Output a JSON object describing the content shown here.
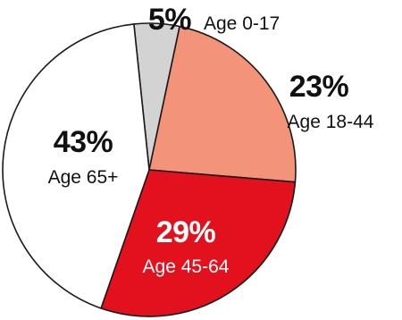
{
  "chart_data": {
    "type": "pie",
    "slices": [
      {
        "label": "Age 0-17",
        "percent_label": "5%",
        "value": 5,
        "color": "#d3d3d3",
        "text_color": "#111111"
      },
      {
        "label": "Age 18-44",
        "percent_label": "23%",
        "value": 23,
        "color": "#f2937a",
        "text_color": "#111111"
      },
      {
        "label": "Age 45-64",
        "percent_label": "29%",
        "value": 29,
        "color": "#e3101e",
        "text_color": "#ffffff"
      },
      {
        "label": "Age 65+",
        "percent_label": "43%",
        "value": 43,
        "color": "#ffffff",
        "text_color": "#111111"
      }
    ],
    "outline_color": "#1a1a1a"
  }
}
